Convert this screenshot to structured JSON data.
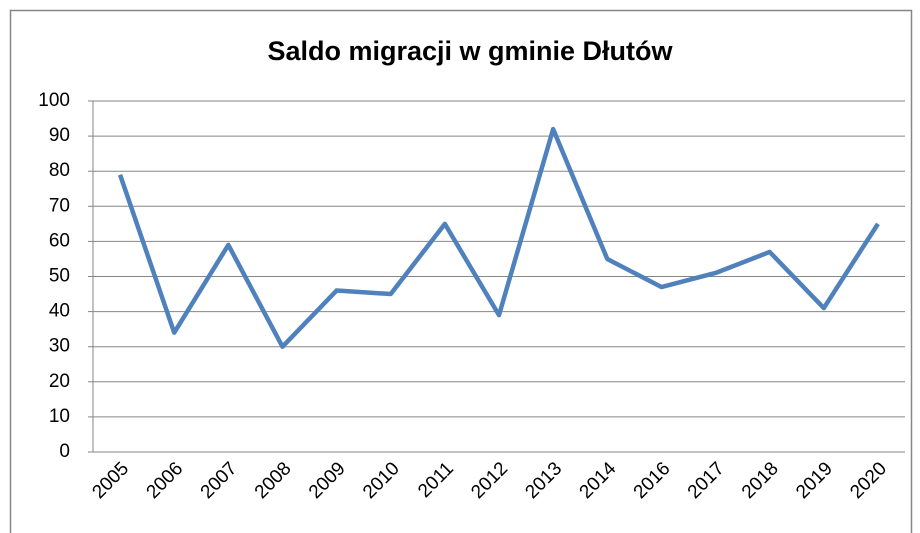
{
  "chart_data": {
    "type": "line",
    "title": "Saldo migracji w gminie Dłutów",
    "categories": [
      "2005",
      "2006",
      "2007",
      "2008",
      "2009",
      "2010",
      "2011",
      "2012",
      "2013",
      "2014",
      "2016",
      "2017",
      "2018",
      "2019",
      "2020"
    ],
    "series": [
      {
        "name": "Saldo migracji",
        "color": "#4f81bd",
        "values": [
          79,
          34,
          59,
          30,
          46,
          45,
          65,
          39,
          92,
          55,
          47,
          51,
          57,
          41,
          65
        ]
      }
    ],
    "ylim": [
      0,
      100
    ],
    "yticks": [
      0,
      10,
      20,
      30,
      40,
      50,
      60,
      70,
      80,
      90,
      100
    ],
    "grid": true,
    "legend": false
  }
}
